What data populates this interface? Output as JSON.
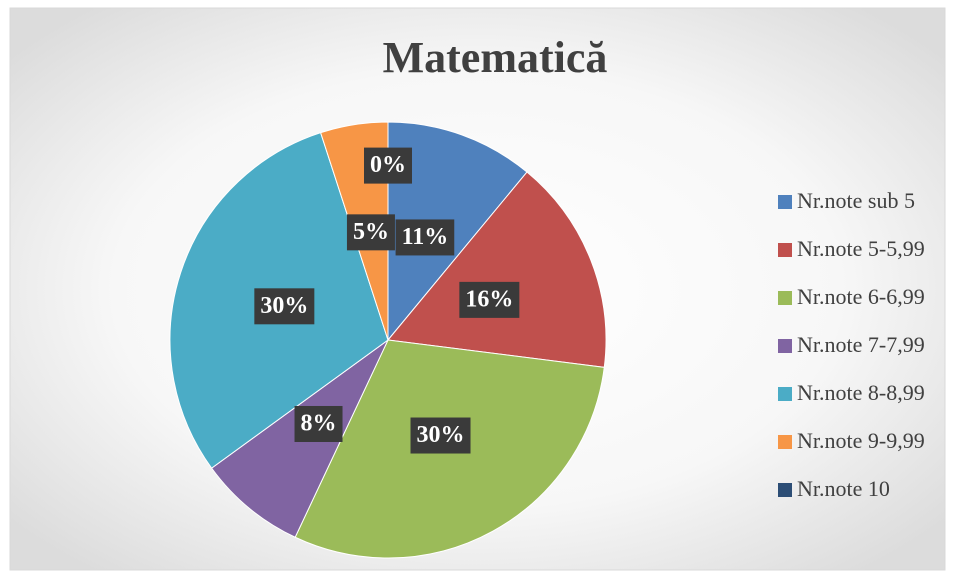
{
  "chart_data": {
    "type": "pie",
    "title": "Matematică",
    "categories": [
      "Nr.note sub 5",
      "Nr.note 5-5,99",
      "Nr.note 6-6,99",
      "Nr.note 7-7,99",
      "Nr.note 8-8,99",
      "Nr.note 9-9,99",
      "Nr.note 10"
    ],
    "values": [
      11,
      16,
      30,
      8,
      30,
      5,
      0
    ],
    "value_labels": [
      "11%",
      "16%",
      "30%",
      "8%",
      "30%",
      "5%",
      "0%"
    ],
    "colors": [
      "#4f81bd",
      "#c0504d",
      "#9bbb59",
      "#8064a2",
      "#4bacc6",
      "#f79646",
      "#2c4d75"
    ],
    "legend": "right"
  }
}
